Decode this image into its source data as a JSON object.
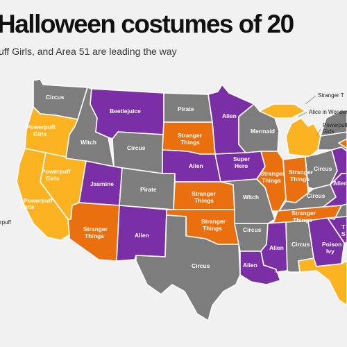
{
  "header": {
    "title": "Halloween costumes of 20",
    "subtitle": "uff Girls, and Area 51 are leading the way"
  },
  "colors": {
    "purple": "#7b2fa6",
    "orange": "#ea6f0f",
    "yellow": "#fbb322",
    "gray": "#7d7d7d"
  },
  "states": {
    "wa": {
      "costume": "Circus",
      "color": "gray"
    },
    "or": {
      "costume": "Powerpuff Girls",
      "color": "yellow"
    },
    "ca": {
      "costume": "Powerpuff Girls",
      "color": "yellow"
    },
    "nv": {
      "costume": "Powerpuff Girls",
      "color": "yellow"
    },
    "id": {
      "costume": "Witch",
      "color": "gray"
    },
    "mt": {
      "costume": "Beetlejuice",
      "color": "purple"
    },
    "wy": {
      "costume": "Circus",
      "color": "gray"
    },
    "ut": {
      "costume": "Jasmine",
      "color": "purple"
    },
    "co": {
      "costume": "Pirate",
      "color": "gray"
    },
    "az": {
      "costume": "Stranger Things",
      "color": "orange"
    },
    "nm": {
      "costume": "Alien",
      "color": "purple"
    },
    "nd": {
      "costume": "Pirate",
      "color": "gray"
    },
    "sd": {
      "costume": "Stranger Things",
      "color": "orange"
    },
    "ne": {
      "costume": "Alien",
      "color": "purple"
    },
    "ks": {
      "costume": "Stranger Things",
      "color": "orange"
    },
    "ok": {
      "costume": "Stranger Things",
      "color": "orange"
    },
    "tx": {
      "costume": "Circus",
      "color": "gray"
    },
    "mn": {
      "costume": "Alien",
      "color": "purple"
    },
    "ia": {
      "costume": "Super Hero",
      "color": "purple"
    },
    "mo": {
      "costume": "Witch",
      "color": "gray"
    },
    "ar": {
      "costume": "Circus",
      "color": "gray"
    },
    "la": {
      "costume": "Alien",
      "color": "purple"
    },
    "wi": {
      "costume": "Mermaid",
      "color": "gray"
    },
    "il": {
      "costume": "Stranger Things",
      "color": "orange"
    },
    "in": {
      "costume": "Stranger Things",
      "color": "orange"
    },
    "mi": {
      "costume": "",
      "color": "yellow"
    },
    "oh": {
      "costume": "Circus",
      "color": "gray"
    },
    "ky": {
      "costume": "Circus",
      "color": "gray"
    },
    "tn": {
      "costume": "Stranger Things",
      "color": "orange"
    },
    "ms": {
      "costume": "Alien",
      "color": "purple"
    },
    "al": {
      "costume": "Circus",
      "color": "gray"
    },
    "ga": {
      "costume": "Poison Ivy",
      "color": "purple"
    },
    "fl": {
      "costume": "",
      "color": "yellow"
    },
    "sc": {
      "costume": "",
      "color": "purple"
    },
    "nc": {
      "costume": "",
      "color": "gray"
    },
    "va": {
      "costume": "Alien",
      "color": "purple"
    },
    "wv": {
      "costume": "",
      "color": "purple"
    },
    "pa": {
      "costume": "",
      "color": "gray"
    },
    "ny": {
      "costume": "",
      "color": "gray"
    },
    "ne_states": {
      "costume": "",
      "color": "orange"
    }
  },
  "callouts": [
    {
      "text": "Stranger T"
    },
    {
      "text": "Alice in Wonder"
    },
    {
      "text": "Powerpuff"
    },
    {
      "text": "Girls"
    },
    {
      "text": "rpuff"
    }
  ],
  "partial_labels": {
    "sc_label": "T",
    "sc_label2": "S"
  }
}
